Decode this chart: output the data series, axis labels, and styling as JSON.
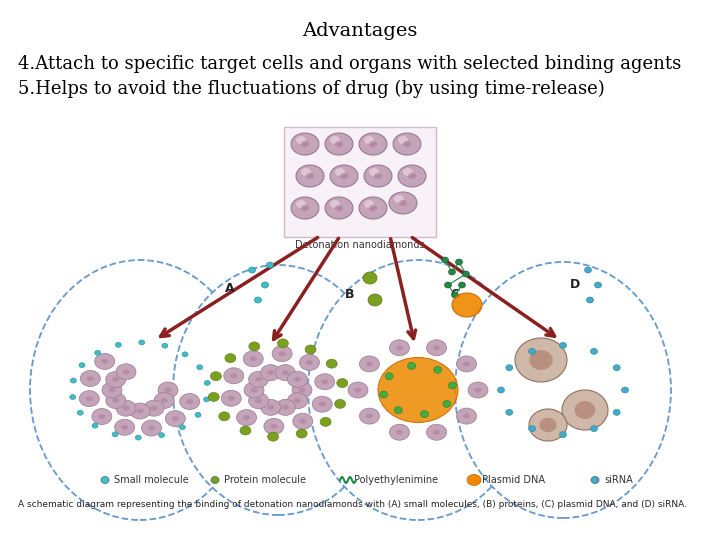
{
  "title": "Advantages",
  "line1": "4.Attach to specific target cells and organs with selected binding agents",
  "line2": "5.Helps to avoid the fluctuations of drug (by using time-release)",
  "bg_color": "#ffffff",
  "text_color": "#000000",
  "title_fontsize": 14,
  "body_fontsize": 13,
  "arrow_color": "#8B2020",
  "nd_color": "#C4A4B8",
  "nd_edge": "#9B7A94",
  "nd_highlight": "#E8D4E0",
  "box_edge": "#CCBBCC",
  "box_face": "#F8F2F8",
  "circle_edge": "#6699CC",
  "circle_face": "#FFFFFF",
  "sm_color": "#44BBCC",
  "sm_edge": "#229988",
  "prot_color": "#7BA020",
  "prot_edge": "#5A7818",
  "sirna_color": "#44AACC",
  "sirna_edge": "#227799",
  "orange_color": "#EE8800",
  "orange_edge": "#CC6600",
  "cell_color": "#D0B8A8",
  "cell_edge": "#907060",
  "cell_inner": "#B89080",
  "green_chain": "#228844",
  "bottom_caption": "A schematic diagram representing the binding of detonation nanodiamonds with (A) small molecules,",
  "bottom_caption2": "(B) proteins, (C) plasmid DNA, and (D) siRNA.",
  "legend_items": [
    "Small molecule",
    "Protein molecule",
    "Polyethylenimine",
    "Plasmid DNA",
    "siRNA"
  ],
  "legend_colors": [
    "#44BBCC",
    "#7BA020",
    "#228844",
    "#EE8800",
    "#44AACC"
  ]
}
